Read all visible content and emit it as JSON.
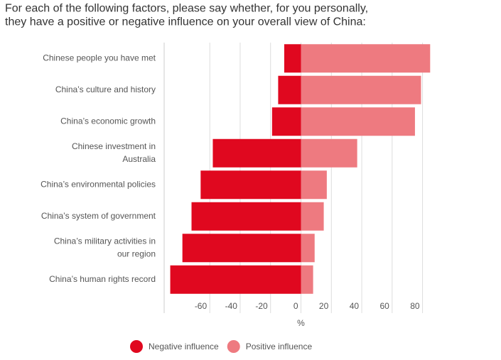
{
  "chart_data": {
    "type": "diverging_bar",
    "title": "For each of the following factors, please say whether, for you personally, they have a positive or negative influence on your overall view of China:",
    "categories": [
      "Chinese people you have met",
      "China’s culture and history",
      "China’s economic growth",
      "Chinese investment in Australia",
      "China’s environmental policies",
      "China’s system of government",
      "China’s military activities in our region",
      "China’s human rights record"
    ],
    "series": [
      {
        "name": "Negative influence",
        "color": "#e0081f",
        "values": [
          -11,
          -15,
          -19,
          -58,
          -66,
          -72,
          -78,
          -86
        ]
      },
      {
        "name": "Positive influence",
        "color": "#ee7a80",
        "values": [
          85,
          79,
          75,
          37,
          17,
          15,
          9,
          8
        ]
      }
    ],
    "xlim": [
      -90,
      90
    ],
    "xticks": [
      -60,
      -40,
      -20,
      0,
      20,
      40,
      60,
      80
    ],
    "xlabel": "%",
    "grid": true,
    "legend": "bottom"
  }
}
